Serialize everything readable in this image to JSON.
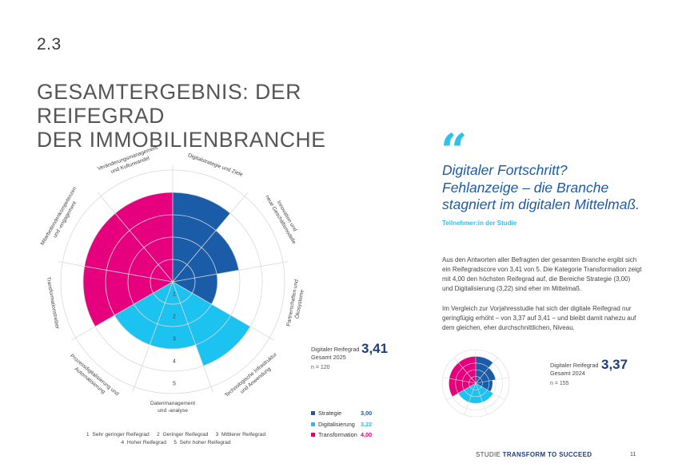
{
  "header": {
    "section_number": "2.3",
    "title_line1": "GESAMTERGEBNIS: DER REIFEGRAD",
    "title_line2": "DER IMMOBILIENBRANCHE"
  },
  "quote": {
    "mark": "“",
    "line1": "Digitaler Fortschritt?",
    "line2": "Fehlanzeige – die Branche",
    "line3": "stagniert im digitalen Mittelmaß.",
    "source": "Teilnehmer:in der Studie"
  },
  "body": {
    "p1": "Aus den Antworten aller Befragten der gesamten Branche ergibt sich ein Reifegradscore von 3,41 von 5. Die Kategorie Transformation zeigt mit 4,00 den höchsten Reifegrad auf, die Bereiche Strategie (3,00) und Digitalisierung (3,22) sind eher im Mittelmaß.",
    "p2": "Im Vergleich zur Vorjahresstudie hat sich der digitale Reifegrad nur geringfügig erhöht – von 3,37 auf 3,41 – und bleibt damit nahezu auf dem gleichen, eher durchschnittlichen, Niveau."
  },
  "score_2025": {
    "label1": "Digitaler Reifegrad",
    "label2": "Gesamt 2025",
    "value": "3,41",
    "n": "n = 120"
  },
  "score_2024": {
    "label1": "Digitaler Reifegrad",
    "label2": "Gesamt 2024",
    "value": "3,37",
    "n": "n = 155"
  },
  "legend": [
    {
      "label": "Strategie",
      "value": "3,00",
      "color": "#1a5ca8"
    },
    {
      "label": "Digitalisierung",
      "value": "3,22",
      "color": "#1cc3f0"
    },
    {
      "label": "Transformation",
      "value": "4,00",
      "color": "#e6007e"
    }
  ],
  "scale": {
    "line1": "1  Sehr geringer Reifegrad     2  Geringer Reifegrad     3  Mittlerer Reifegrad",
    "line2": "4  Hoher Reifegrad     5  Sehr hoher Reifegrad"
  },
  "footer": {
    "study_prefix": "STUDIE ",
    "study_name": "TRANSFORM TO SUCCEED",
    "page_number": "11"
  },
  "chart_data": [
    {
      "type": "radial-bar",
      "title": "Digitaler Reifegrad Gesamt 2025",
      "rlim": [
        0,
        5
      ],
      "ring_labels": [
        "1",
        "2",
        "3",
        "4",
        "5"
      ],
      "categories": [
        {
          "line1": "Digitalstrategie und Ziele",
          "line2": "",
          "group": "Strategie",
          "value": 4.0
        },
        {
          "line1": "Innovation und",
          "line2": "neue Geschäftsmodelle",
          "group": "Strategie",
          "value": 3.0
        },
        {
          "line1": "Partnerschaften und",
          "line2": "Ökosysteme",
          "group": "Strategie",
          "value": 2.0
        },
        {
          "line1": "Technologische Infrastruktur",
          "line2": "und Anwendung",
          "group": "Digitalisierung",
          "value": 4.0
        },
        {
          "line1": "Datenmanagement",
          "line2": "und -analyse",
          "group": "Digitalisierung",
          "value": 3.0
        },
        {
          "line1": "Prozessdigitalisierung und",
          "line2": "Automatisierung",
          "group": "Digitalisierung",
          "value": 3.0
        },
        {
          "line1": "Transformationstreiber",
          "line2": "",
          "group": "Transformation",
          "value": 4.0
        },
        {
          "line1": "Mitarbeitendenkompetenzen",
          "line2": "und -engagement",
          "group": "Transformation",
          "value": 4.0
        },
        {
          "line1": "Veränderungsmanagement",
          "line2": "und Kulturwandel",
          "group": "Transformation",
          "value": 4.0
        }
      ]
    },
    {
      "type": "radial-bar",
      "title": "Digitaler Reifegrad Gesamt 2024",
      "rlim": [
        0,
        5
      ],
      "categories": [
        {
          "group": "Strategie",
          "value": 4.0
        },
        {
          "group": "Strategie",
          "value": 3.0
        },
        {
          "group": "Strategie",
          "value": 2.5
        },
        {
          "group": "Digitalisierung",
          "value": 3.0
        },
        {
          "group": "Digitalisierung",
          "value": 3.0
        },
        {
          "group": "Digitalisierung",
          "value": 3.0
        },
        {
          "group": "Transformation",
          "value": 4.0
        },
        {
          "group": "Transformation",
          "value": 4.0
        },
        {
          "group": "Transformation",
          "value": 4.0
        }
      ]
    }
  ]
}
